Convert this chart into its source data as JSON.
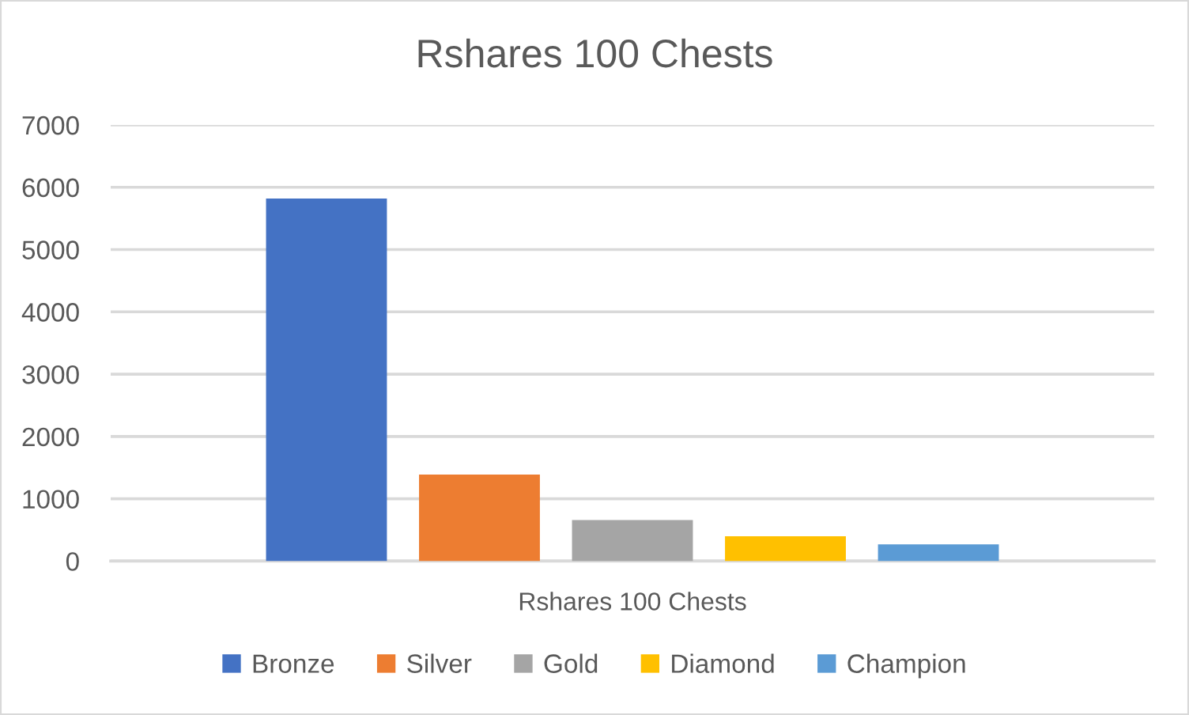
{
  "chart_data": {
    "type": "bar",
    "title": "Rshares 100 Chests",
    "categories": [
      "Rshares 100 Chests"
    ],
    "series": [
      {
        "name": "Bronze",
        "color": "#4472c4",
        "values": [
          5820
        ]
      },
      {
        "name": "Silver",
        "color": "#ed7d31",
        "values": [
          1390
        ]
      },
      {
        "name": "Gold",
        "color": "#a5a5a5",
        "values": [
          660
        ]
      },
      {
        "name": "Diamond",
        "color": "#ffc000",
        "values": [
          400
        ]
      },
      {
        "name": "Champion",
        "color": "#5b9bd5",
        "values": [
          270
        ]
      }
    ],
    "ylim": [
      0,
      7000
    ],
    "yticks": [
      0,
      1000,
      2000,
      3000,
      4000,
      5000,
      6000,
      7000
    ],
    "grid": "y",
    "legend": "bottom"
  }
}
